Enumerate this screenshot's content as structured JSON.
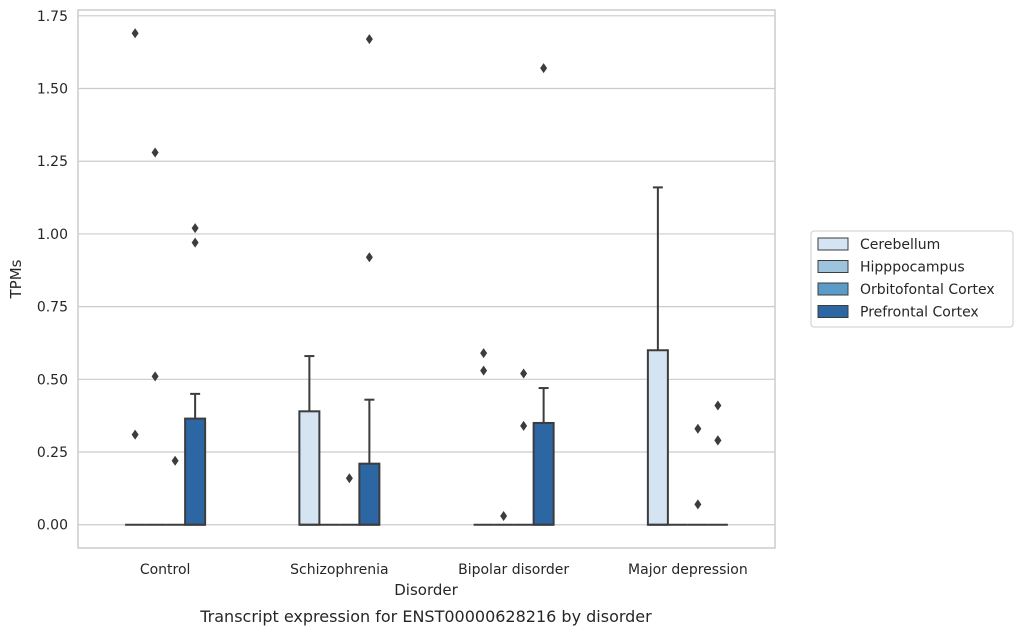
{
  "chart_data": {
    "type": "box",
    "xlabel": "Disorder",
    "ylabel": "TPMs",
    "caption": "Transcript expression for ENST00000628216 by disorder",
    "ylim": [
      -0.08,
      1.77
    ],
    "yticks": [
      "0.00",
      "0.25",
      "0.50",
      "0.75",
      "1.00",
      "1.25",
      "1.50",
      "1.75"
    ],
    "grid": "horizontal",
    "legend_position": "right",
    "categories": [
      "Control",
      "Schizophrenia",
      "Bipolar disorder",
      "Major depression"
    ],
    "series": [
      {
        "name": "Cerebellum",
        "color": "#d5e4f2",
        "boxes": [
          {
            "q1": 0,
            "median": 0,
            "q3": 0,
            "whisker_low": 0,
            "whisker_high": 0,
            "outliers": [
              1.69,
              0.31
            ]
          },
          {
            "q1": 0,
            "median": 0,
            "q3": 0.39,
            "whisker_low": 0,
            "whisker_high": 0.58,
            "outliers": []
          },
          {
            "q1": 0,
            "median": 0,
            "q3": 0,
            "whisker_low": 0,
            "whisker_high": 0,
            "outliers": [
              0.59,
              0.53
            ]
          },
          {
            "q1": 0,
            "median": 0,
            "q3": 0.6,
            "whisker_low": 0,
            "whisker_high": 1.16,
            "outliers": []
          }
        ]
      },
      {
        "name": "Hipppocampus",
        "color": "#9ec4dd",
        "boxes": [
          {
            "q1": 0,
            "median": 0,
            "q3": 0,
            "whisker_low": 0,
            "whisker_high": 0,
            "outliers": [
              1.28,
              0.51
            ]
          },
          {
            "q1": 0,
            "median": 0,
            "q3": 0,
            "whisker_low": 0,
            "whisker_high": 0,
            "outliers": []
          },
          {
            "q1": 0,
            "median": 0,
            "q3": 0,
            "whisker_low": 0,
            "whisker_high": 0,
            "outliers": [
              0.03
            ]
          },
          {
            "q1": 0,
            "median": 0,
            "q3": 0,
            "whisker_low": 0,
            "whisker_high": 0,
            "outliers": []
          }
        ]
      },
      {
        "name": "Orbitofontal Cortex",
        "color": "#5b9bc8",
        "boxes": [
          {
            "q1": 0,
            "median": 0,
            "q3": 0,
            "whisker_low": 0,
            "whisker_high": 0,
            "outliers": [
              0.22
            ]
          },
          {
            "q1": 0,
            "median": 0,
            "q3": 0,
            "whisker_low": 0,
            "whisker_high": 0,
            "outliers": [
              0.16
            ]
          },
          {
            "q1": 0,
            "median": 0,
            "q3": 0,
            "whisker_low": 0,
            "whisker_high": 0,
            "outliers": [
              0.52,
              0.34
            ]
          },
          {
            "q1": 0,
            "median": 0,
            "q3": 0,
            "whisker_low": 0,
            "whisker_high": 0,
            "outliers": [
              0.33,
              0.07
            ]
          }
        ]
      },
      {
        "name": "Prefrontal Cortex",
        "color": "#2c67a4",
        "boxes": [
          {
            "q1": 0,
            "median": 0,
            "q3": 0.365,
            "whisker_low": 0,
            "whisker_high": 0.45,
            "outliers": [
              1.02,
              0.97
            ]
          },
          {
            "q1": 0,
            "median": 0,
            "q3": 0.21,
            "whisker_low": 0,
            "whisker_high": 0.43,
            "outliers": [
              1.67,
              0.92
            ]
          },
          {
            "q1": 0,
            "median": 0,
            "q3": 0.35,
            "whisker_low": 0,
            "whisker_high": 0.47,
            "outliers": [
              1.57
            ]
          },
          {
            "q1": 0,
            "median": 0,
            "q3": 0,
            "whisker_low": 0,
            "whisker_high": 0,
            "outliers": [
              0.41,
              0.29,
              0.29
            ]
          }
        ]
      }
    ]
  }
}
